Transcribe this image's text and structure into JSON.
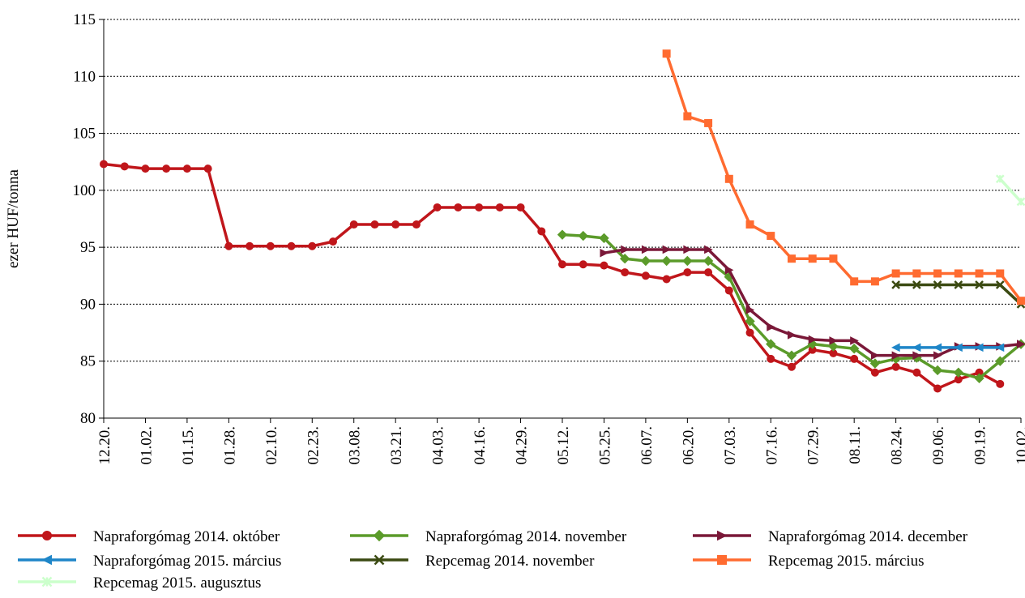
{
  "chart_data": {
    "type": "line",
    "y_label": "ezer HUF/tonna",
    "categories": [
      "12.20.",
      null,
      "01.02.",
      null,
      "01.15.",
      null,
      "01.28.",
      null,
      "02.10.",
      null,
      "02.23.",
      null,
      "03.08.",
      null,
      "03.21.",
      null,
      "04.03.",
      null,
      "04.16.",
      null,
      "04.29.",
      null,
      "05.12.",
      null,
      "05.25.",
      null,
      "06.07.",
      null,
      "06.20.",
      null,
      "07.03.",
      null,
      "07.16.",
      null,
      "07.29.",
      null,
      "08.11.",
      null,
      "08.24.",
      null,
      "09.06.",
      null,
      "09.19.",
      null,
      "10.02."
    ],
    "ylim": [
      80,
      115
    ],
    "yticks": [
      80,
      85,
      90,
      95,
      100,
      105,
      110,
      115
    ],
    "grid": true,
    "legend": "bottom",
    "series": [
      {
        "name": "Napraforgómag 2014. október",
        "color": "#c0161b",
        "marker": "circle",
        "values": [
          102.3,
          102.1,
          101.9,
          101.9,
          101.9,
          101.9,
          95.1,
          95.1,
          95.1,
          95.1,
          95.1,
          95.5,
          97,
          97,
          97,
          97,
          98.5,
          98.5,
          98.5,
          98.5,
          98.5,
          96.4,
          93.5,
          93.5,
          93.4,
          92.8,
          92.5,
          92.2,
          92.8,
          92.8,
          91.2,
          87.5,
          85.2,
          84.5,
          86,
          85.7,
          85.2,
          84,
          84.5,
          84,
          82.6,
          83.4,
          84,
          83,
          null
        ]
      },
      {
        "name": "Napraforgómag 2014. november",
        "color": "#5b9b2a",
        "marker": "diamond",
        "values": [
          null,
          null,
          null,
          null,
          null,
          null,
          null,
          null,
          null,
          null,
          null,
          null,
          null,
          null,
          null,
          null,
          null,
          null,
          null,
          null,
          null,
          null,
          96.1,
          96,
          95.8,
          94,
          93.8,
          93.8,
          93.8,
          93.8,
          92.4,
          88.5,
          86.5,
          85.5,
          86.5,
          86.3,
          86.1,
          84.8,
          85.2,
          85.3,
          84.2,
          84,
          83.5,
          85,
          86.5
        ]
      },
      {
        "name": "Napraforgómag 2014. december",
        "color": "#7a1838",
        "marker": "triangle-right",
        "values": [
          null,
          null,
          null,
          null,
          null,
          null,
          null,
          null,
          null,
          null,
          null,
          null,
          null,
          null,
          null,
          null,
          null,
          null,
          null,
          null,
          null,
          null,
          null,
          null,
          94.5,
          94.8,
          94.8,
          94.8,
          94.8,
          94.8,
          93,
          89.5,
          88,
          87.3,
          86.9,
          86.8,
          86.8,
          85.5,
          85.5,
          85.5,
          85.5,
          86.3,
          86.3,
          86.3,
          86.5
        ]
      },
      {
        "name": "Napraforgómag 2015. március",
        "color": "#1f86c8",
        "marker": "triangle-left",
        "values": [
          null,
          null,
          null,
          null,
          null,
          null,
          null,
          null,
          null,
          null,
          null,
          null,
          null,
          null,
          null,
          null,
          null,
          null,
          null,
          null,
          null,
          null,
          null,
          null,
          null,
          null,
          null,
          null,
          null,
          null,
          null,
          null,
          null,
          null,
          null,
          null,
          null,
          null,
          86.2,
          86.2,
          86.2,
          86.2,
          86.2,
          86.2,
          null
        ]
      },
      {
        "name": "Repcemag 2014. november",
        "color": "#3b4a12",
        "marker": "x",
        "values": [
          null,
          null,
          null,
          null,
          null,
          null,
          null,
          null,
          null,
          null,
          null,
          null,
          null,
          null,
          null,
          null,
          null,
          null,
          null,
          null,
          null,
          null,
          null,
          null,
          null,
          null,
          null,
          null,
          null,
          null,
          null,
          null,
          null,
          null,
          null,
          null,
          null,
          null,
          91.7,
          91.7,
          91.7,
          91.7,
          91.7,
          91.7,
          90
        ]
      },
      {
        "name": "Repcemag 2015. március",
        "color": "#ff6b30",
        "marker": "square",
        "values": [
          null,
          null,
          null,
          null,
          null,
          null,
          null,
          null,
          null,
          null,
          null,
          null,
          null,
          null,
          null,
          null,
          null,
          null,
          null,
          null,
          null,
          null,
          null,
          null,
          null,
          null,
          null,
          112,
          106.5,
          105.9,
          101,
          97,
          96,
          94,
          94,
          94,
          92,
          92,
          92.7,
          92.7,
          92.7,
          92.7,
          92.7,
          92.7,
          90.3
        ]
      },
      {
        "name": "Repcemag 2015. augusztus",
        "color": "#ccffcc",
        "marker": "star",
        "values": [
          null,
          null,
          null,
          null,
          null,
          null,
          null,
          null,
          null,
          null,
          null,
          null,
          null,
          null,
          null,
          null,
          null,
          null,
          null,
          null,
          null,
          null,
          null,
          null,
          null,
          null,
          null,
          null,
          null,
          null,
          null,
          null,
          null,
          null,
          null,
          null,
          null,
          null,
          null,
          null,
          null,
          null,
          null,
          101,
          99
        ]
      }
    ]
  }
}
